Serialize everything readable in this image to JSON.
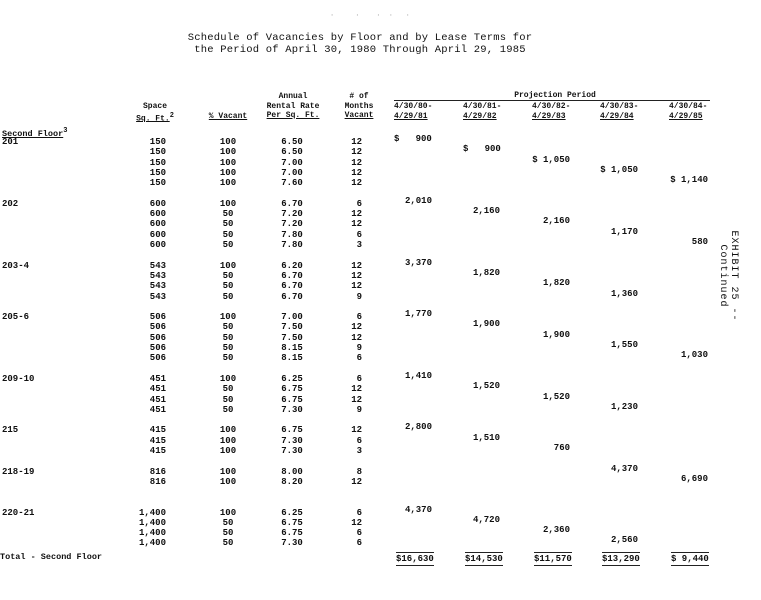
{
  "title": {
    "line1": "Schedule of Vacancies by Floor and by Lease Terms for",
    "line2": "the Period of April 30, 1980 Through April 29, 1985"
  },
  "exhibit_label": "EXHIBIT 25 -- Continued",
  "headers": {
    "space": [
      "Space",
      "Sq. Ft."
    ],
    "space_sup": "2",
    "pct_vacant": "% Vacant",
    "rate": [
      "Annual",
      "Rental Rate",
      "Per Sq. Ft."
    ],
    "months": [
      "# of",
      "Months",
      "Vacant"
    ],
    "projection": "Projection Period",
    "periods": [
      [
        "4/30/80-",
        "4/29/81"
      ],
      [
        "4/30/81-",
        "4/29/82"
      ],
      [
        "4/30/82-",
        "4/29/83"
      ],
      [
        "4/30/83-",
        "4/29/84"
      ],
      [
        "4/30/84-",
        "4/29/85"
      ]
    ]
  },
  "section": {
    "label": "Second Floor",
    "sup": "3"
  },
  "groups": [
    {
      "unit": "201",
      "rows": [
        {
          "sqft": "150",
          "pct": "100",
          "rate": "6.50",
          "months": "12",
          "proj": [
            "$   900",
            null,
            null,
            null,
            null
          ]
        },
        {
          "sqft": "150",
          "pct": "100",
          "rate": "6.50",
          "months": "12",
          "proj": [
            null,
            "$   900",
            null,
            null,
            null
          ]
        },
        {
          "sqft": "150",
          "pct": "100",
          "rate": "7.00",
          "months": "12",
          "proj": [
            null,
            null,
            "$ 1,050",
            null,
            null
          ]
        },
        {
          "sqft": "150",
          "pct": "100",
          "rate": "7.00",
          "months": "12",
          "proj": [
            null,
            null,
            null,
            "$ 1,050",
            null
          ]
        },
        {
          "sqft": "150",
          "pct": "100",
          "rate": "7.60",
          "months": "12",
          "proj": [
            null,
            null,
            null,
            null,
            "$ 1,140"
          ]
        }
      ]
    },
    {
      "unit": "202",
      "rows": [
        {
          "sqft": "600",
          "pct": "100",
          "rate": "6.70",
          "months": "6",
          "proj": [
            "2,010",
            null,
            null,
            null,
            null
          ]
        },
        {
          "sqft": "600",
          "pct": "50",
          "rate": "7.20",
          "months": "12",
          "proj": [
            null,
            "2,160",
            null,
            null,
            null
          ]
        },
        {
          "sqft": "600",
          "pct": "50",
          "rate": "7.20",
          "months": "12",
          "proj": [
            null,
            null,
            "2,160",
            null,
            null
          ]
        },
        {
          "sqft": "600",
          "pct": "50",
          "rate": "7.80",
          "months": "6",
          "proj": [
            null,
            null,
            null,
            "1,170",
            null
          ]
        },
        {
          "sqft": "600",
          "pct": "50",
          "rate": "7.80",
          "months": "3",
          "proj": [
            null,
            null,
            null,
            null,
            "580"
          ]
        }
      ]
    },
    {
      "unit": "203-4",
      "rows": [
        {
          "sqft": "543",
          "pct": "100",
          "rate": "6.20",
          "months": "12",
          "proj": [
            "3,370",
            null,
            null,
            null,
            null
          ]
        },
        {
          "sqft": "543",
          "pct": "50",
          "rate": "6.70",
          "months": "12",
          "proj": [
            null,
            "1,820",
            null,
            null,
            null
          ]
        },
        {
          "sqft": "543",
          "pct": "50",
          "rate": "6.70",
          "months": "12",
          "proj": [
            null,
            null,
            "1,820",
            null,
            null
          ]
        },
        {
          "sqft": "543",
          "pct": "50",
          "rate": "6.70",
          "months": "9",
          "proj": [
            null,
            null,
            null,
            "1,360",
            null
          ]
        }
      ]
    },
    {
      "unit": "205-6",
      "rows": [
        {
          "sqft": "506",
          "pct": "100",
          "rate": "7.00",
          "months": "6",
          "proj": [
            "1,770",
            null,
            null,
            null,
            null
          ]
        },
        {
          "sqft": "506",
          "pct": "50",
          "rate": "7.50",
          "months": "12",
          "proj": [
            null,
            "1,900",
            null,
            null,
            null
          ]
        },
        {
          "sqft": "506",
          "pct": "50",
          "rate": "7.50",
          "months": "12",
          "proj": [
            null,
            null,
            "1,900",
            null,
            null
          ]
        },
        {
          "sqft": "506",
          "pct": "50",
          "rate": "8.15",
          "months": "9",
          "proj": [
            null,
            null,
            null,
            "1,550",
            null
          ]
        },
        {
          "sqft": "506",
          "pct": "50",
          "rate": "8.15",
          "months": "6",
          "proj": [
            null,
            null,
            null,
            null,
            "1,030"
          ]
        }
      ]
    },
    {
      "unit": "209-10",
      "rows": [
        {
          "sqft": "451",
          "pct": "100",
          "rate": "6.25",
          "months": "6",
          "proj": [
            "1,410",
            null,
            null,
            null,
            null
          ]
        },
        {
          "sqft": "451",
          "pct": "50",
          "rate": "6.75",
          "months": "12",
          "proj": [
            null,
            "1,520",
            null,
            null,
            null
          ]
        },
        {
          "sqft": "451",
          "pct": "50",
          "rate": "6.75",
          "months": "12",
          "proj": [
            null,
            null,
            "1,520",
            null,
            null
          ]
        },
        {
          "sqft": "451",
          "pct": "50",
          "rate": "7.30",
          "months": "9",
          "proj": [
            null,
            null,
            null,
            "1,230",
            null
          ]
        }
      ]
    },
    {
      "unit": "215",
      "rows": [
        {
          "sqft": "415",
          "pct": "100",
          "rate": "6.75",
          "months": "12",
          "proj": [
            "2,800",
            null,
            null,
            null,
            null
          ]
        },
        {
          "sqft": "415",
          "pct": "100",
          "rate": "7.30",
          "months": "6",
          "proj": [
            null,
            "1,510",
            null,
            null,
            null
          ]
        },
        {
          "sqft": "415",
          "pct": "100",
          "rate": "7.30",
          "months": "3",
          "proj": [
            null,
            null,
            "760",
            null,
            null
          ]
        }
      ]
    },
    {
      "unit": "218-19",
      "rows": [
        {
          "sqft": "816",
          "pct": "100",
          "rate": "8.00",
          "months": "8",
          "proj": [
            null,
            null,
            null,
            "4,370",
            null
          ]
        },
        {
          "sqft": "816",
          "pct": "100",
          "rate": "8.20",
          "months": "12",
          "proj": [
            null,
            null,
            null,
            null,
            "6,690"
          ]
        }
      ]
    },
    {
      "unit": "220-21",
      "rows": [
        {
          "sqft": "1,400",
          "pct": "100",
          "rate": "6.25",
          "months": "6",
          "proj": [
            "4,370",
            null,
            null,
            null,
            null
          ]
        },
        {
          "sqft": "1,400",
          "pct": "50",
          "rate": "6.75",
          "months": "12",
          "proj": [
            null,
            "4,720",
            null,
            null,
            null
          ]
        },
        {
          "sqft": "1,400",
          "pct": "50",
          "rate": "6.75",
          "months": "6",
          "proj": [
            null,
            null,
            "2,360",
            null,
            null
          ]
        },
        {
          "sqft": "1,400",
          "pct": "50",
          "rate": "7.30",
          "months": "6",
          "proj": [
            null,
            null,
            null,
            "2,560",
            null
          ]
        }
      ]
    }
  ],
  "total": {
    "label": "Total - Second Floor",
    "values": [
      "$16,630",
      "$14,530",
      "$11,570",
      "$13,290",
      "$ 9,440"
    ]
  }
}
